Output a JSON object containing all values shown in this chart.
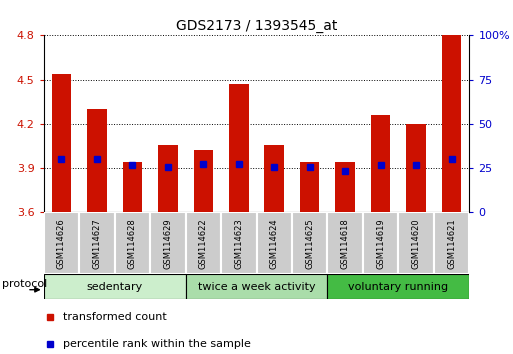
{
  "title": "GDS2173 / 1393545_at",
  "samples": [
    "GSM114626",
    "GSM114627",
    "GSM114628",
    "GSM114629",
    "GSM114622",
    "GSM114623",
    "GSM114624",
    "GSM114625",
    "GSM114618",
    "GSM114619",
    "GSM114620",
    "GSM114621"
  ],
  "bar_tops": [
    4.54,
    4.3,
    3.94,
    4.06,
    4.02,
    4.47,
    4.06,
    3.94,
    3.94,
    4.26,
    4.2,
    4.8
  ],
  "bar_bottoms": [
    3.6,
    3.6,
    3.6,
    3.6,
    3.6,
    3.6,
    3.6,
    3.6,
    3.6,
    3.6,
    3.6,
    3.6
  ],
  "percentile_values": [
    3.96,
    3.96,
    3.92,
    3.91,
    3.93,
    3.93,
    3.91,
    3.91,
    3.88,
    3.92,
    3.92,
    3.96
  ],
  "groups": [
    {
      "label": "sedentary",
      "start": 0,
      "end": 4,
      "color": "#cceecc"
    },
    {
      "label": "twice a week activity",
      "start": 4,
      "end": 8,
      "color": "#aaddaa"
    },
    {
      "label": "voluntary running",
      "start": 8,
      "end": 12,
      "color": "#44bb44"
    }
  ],
  "bar_color": "#cc1100",
  "percentile_color": "#0000cc",
  "ylim_left": [
    3.6,
    4.8
  ],
  "ylim_right": [
    0,
    100
  ],
  "yticks_left": [
    3.6,
    3.9,
    4.2,
    4.5,
    4.8
  ],
  "yticks_right": [
    0,
    25,
    50,
    75,
    100
  ],
  "ytick_labels_right": [
    "0",
    "25",
    "50",
    "75",
    "100%"
  ],
  "legend_items": [
    {
      "label": "transformed count",
      "color": "#cc1100"
    },
    {
      "label": "percentile rank within the sample",
      "color": "#0000cc"
    }
  ],
  "protocol_label": "protocol",
  "bar_width": 0.55,
  "left_tick_color": "#cc1100",
  "right_tick_color": "#0000cc",
  "title_fontsize": 10,
  "tick_fontsize": 8,
  "label_fontsize": 8,
  "sample_fontsize": 6,
  "cell_color": "#cccccc",
  "cell_edge_color": "#ffffff"
}
